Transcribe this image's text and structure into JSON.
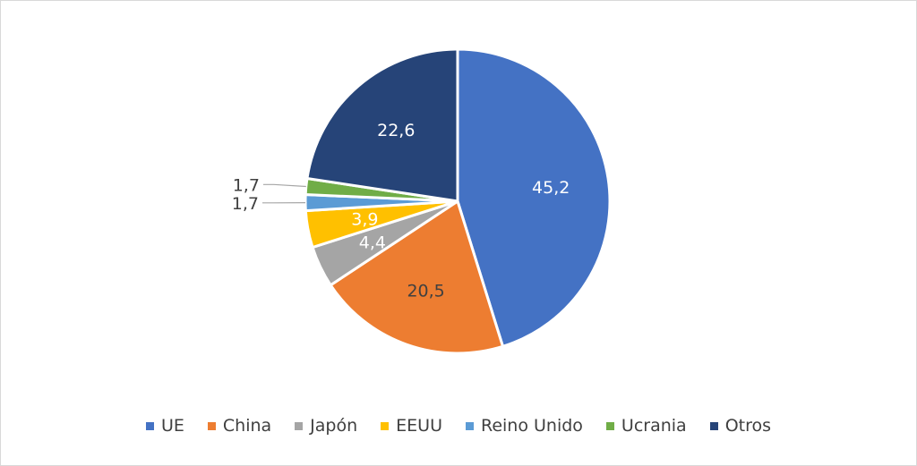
{
  "chart_data": {
    "type": "pie",
    "title": "",
    "slices": [
      {
        "label": "UE",
        "value": 45.2,
        "display": "45,2",
        "color": "#4472C4"
      },
      {
        "label": "China",
        "value": 20.5,
        "display": "20,5",
        "color": "#ED7D31"
      },
      {
        "label": "Japón",
        "value": 4.4,
        "display": "4,4",
        "color": "#A5A5A5"
      },
      {
        "label": "EEUU",
        "value": 3.9,
        "display": "3,9",
        "color": "#FFC000"
      },
      {
        "label": "Reino Unido",
        "value": 1.7,
        "display": "1,7",
        "color": "#5B9BD5"
      },
      {
        "label": "Ucrania",
        "value": 1.7,
        "display": "1,7",
        "color": "#70AD47"
      },
      {
        "label": "Otros",
        "value": 22.6,
        "display": "22,6",
        "color": "#264478"
      }
    ],
    "start_angle_deg": 0,
    "direction": "clockwise",
    "legend_position": "bottom"
  }
}
